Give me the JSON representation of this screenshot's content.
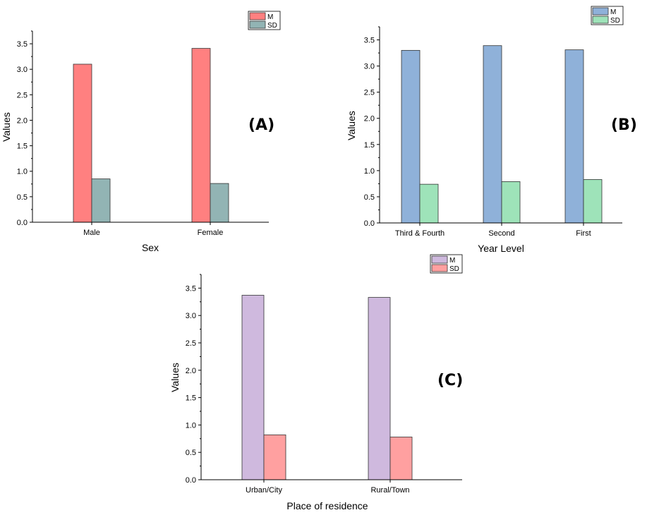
{
  "chart_data": [
    {
      "type": "bar",
      "panel_label": "(A)",
      "xlabel": "Sex",
      "ylabel": "Values",
      "categories": [
        "Male",
        "Female"
      ],
      "series": [
        {
          "name": "M",
          "values": [
            3.1,
            3.41
          ],
          "color": "#ff8080"
        },
        {
          "name": "SD",
          "values": [
            0.85,
            0.76
          ],
          "color": "#92b4b4"
        }
      ],
      "ylim": [
        0,
        3.75
      ],
      "yticks": [
        "0.0",
        "0.5",
        "1.0",
        "1.5",
        "2.0",
        "2.5",
        "3.0",
        "3.5"
      ],
      "legend": "top-right",
      "grid": false
    },
    {
      "type": "bar",
      "panel_label": "(B)",
      "xlabel": "Year Level",
      "ylabel": "Values",
      "categories": [
        "Third & Fourth",
        "Second",
        "First"
      ],
      "series": [
        {
          "name": "M",
          "values": [
            3.3,
            3.39,
            3.31
          ],
          "color": "#8fb1d9"
        },
        {
          "name": "SD",
          "values": [
            0.74,
            0.79,
            0.83
          ],
          "color": "#9ee3b9"
        }
      ],
      "ylim": [
        0,
        3.75
      ],
      "yticks": [
        "0.0",
        "0.5",
        "1.0",
        "1.5",
        "2.0",
        "2.5",
        "3.0",
        "3.5"
      ],
      "legend": "top-right",
      "grid": false
    },
    {
      "type": "bar",
      "panel_label": "(C)",
      "xlabel": "Place of residence",
      "ylabel": "Values",
      "categories": [
        "Urban/City",
        "Rural/Town"
      ],
      "series": [
        {
          "name": "M",
          "values": [
            3.37,
            3.33
          ],
          "color": "#cfb9de"
        },
        {
          "name": "SD",
          "values": [
            0.82,
            0.78
          ],
          "color": "#ffa0a0"
        }
      ],
      "ylim": [
        0,
        3.75
      ],
      "yticks": [
        "0.0",
        "0.5",
        "1.0",
        "1.5",
        "2.0",
        "2.5",
        "3.0",
        "3.5"
      ],
      "legend": "top-right",
      "grid": false
    }
  ]
}
